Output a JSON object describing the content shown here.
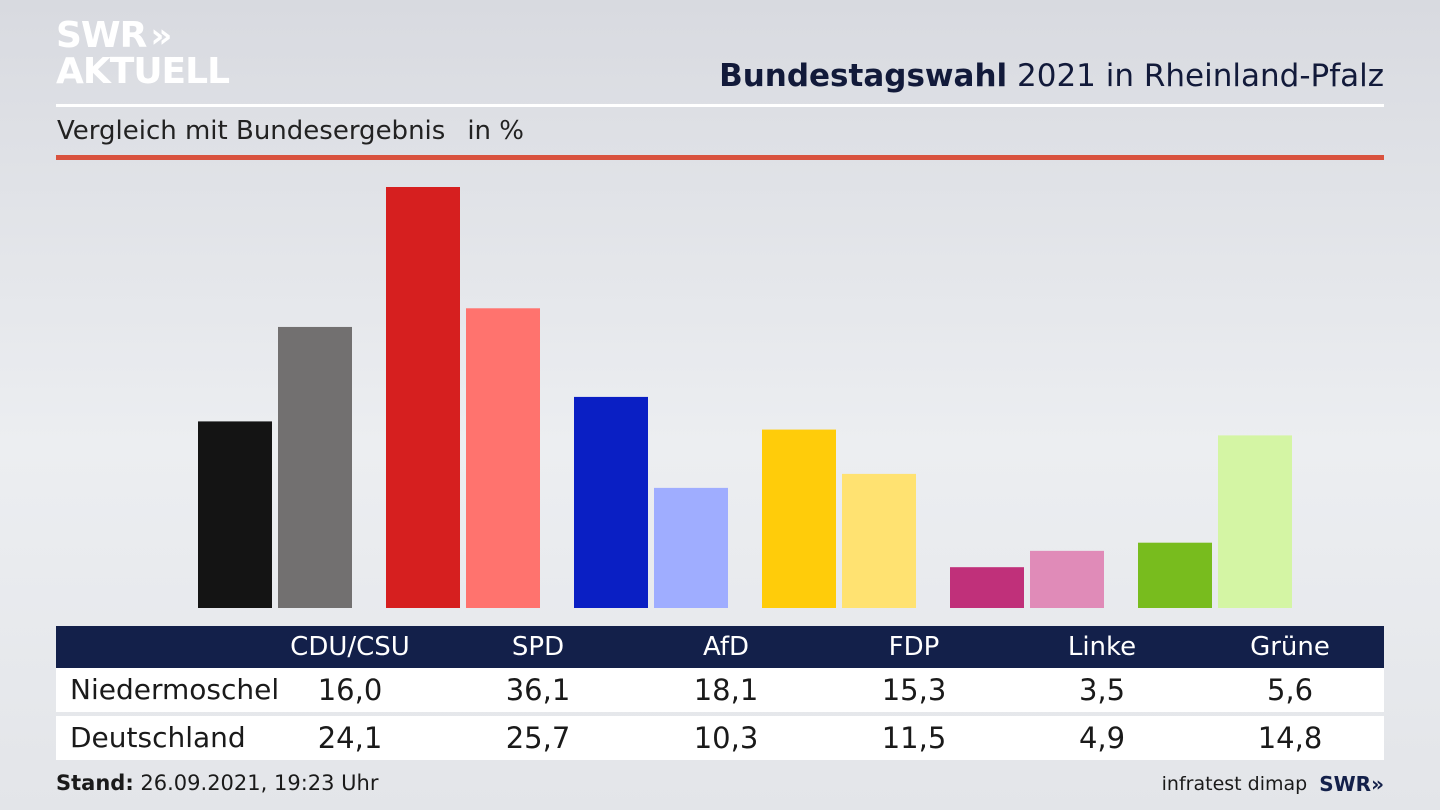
{
  "logo": {
    "line1": "SWR",
    "line1_chevrons": "»",
    "line2": "AKTUELL"
  },
  "header": {
    "title_bold": "Bundestagswahl",
    "title_rest": " 2021 in Rheinland-Pfalz",
    "subtitle": "Vergleich mit Bundesergebnis",
    "unit": "in %"
  },
  "chart_data": {
    "type": "bar",
    "categories": [
      "CDU/CSU",
      "SPD",
      "AfD",
      "FDP",
      "Linke",
      "Grüne"
    ],
    "series": [
      {
        "name": "Niedermoschel",
        "values": [
          16.0,
          36.1,
          18.1,
          15.3,
          3.5,
          5.6
        ],
        "colors": [
          "#141414",
          "#d61f1f",
          "#0a1fc4",
          "#ffcc0a",
          "#c0307a",
          "#78bc1e"
        ]
      },
      {
        "name": "Deutschland",
        "values": [
          24.1,
          25.7,
          10.3,
          11.5,
          4.9,
          14.8
        ],
        "colors": [
          "#727070",
          "#ff736e",
          "#9fadff",
          "#ffe271",
          "#e08bb8",
          "#d4f5a4"
        ]
      }
    ],
    "ylim": [
      0,
      36.1
    ]
  },
  "table": {
    "headers": [
      "CDU/CSU",
      "SPD",
      "AfD",
      "FDP",
      "Linke",
      "Grüne"
    ],
    "rows": [
      {
        "label": "Niedermoschel",
        "values": [
          "16,0",
          "36,1",
          "18,1",
          "15,3",
          "3,5",
          "5,6"
        ]
      },
      {
        "label": "Deutschland",
        "values": [
          "24,1",
          "25,7",
          "10,3",
          "11,5",
          "4,9",
          "14,8"
        ]
      }
    ]
  },
  "footer": {
    "stand_label": "Stand:",
    "stand_value": " 26.09.2021, 19:23 Uhr",
    "source": "infratest dimap",
    "brand": "SWR»"
  }
}
